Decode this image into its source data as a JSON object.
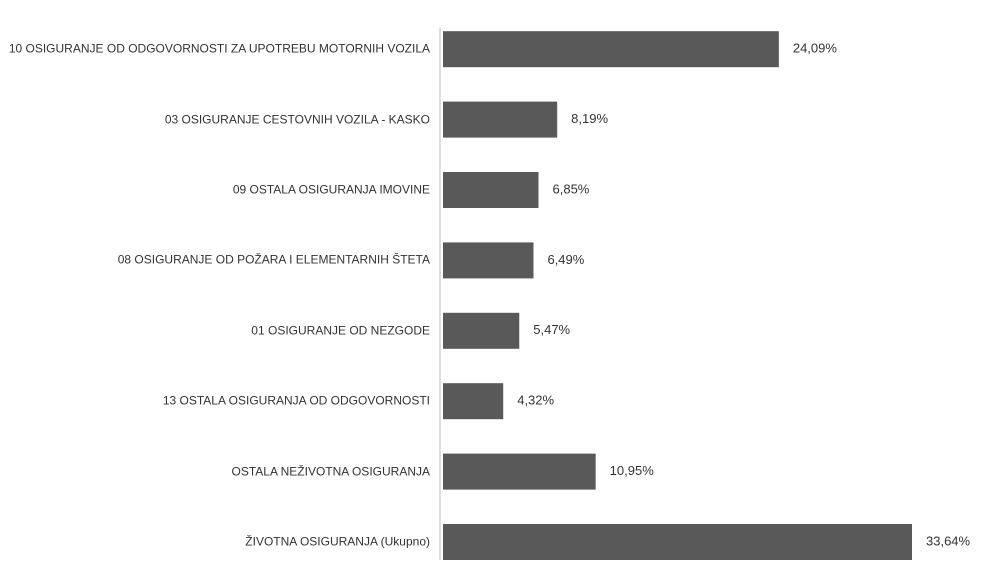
{
  "chart_data": {
    "type": "bar",
    "orientation": "horizontal",
    "categories": [
      "10 OSIGURANJE OD ODGOVORNOSTI ZA UPOTREBU MOTORNIH VOZILA",
      "03 OSIGURANJE CESTOVNIH VOZILA - KASKO",
      "09 OSTALA OSIGURANJA IMOVINE",
      "08 OSIGURANJE OD POŽARA I ELEMENTARNIH ŠTETA",
      "01 OSIGURANJE OD NEZGODE",
      "13 OSTALA OSIGURANJA OD ODGOVORNOSTI",
      "OSTALA NEŽIVOTNA OSIGURANJA",
      "ŽIVOTNA OSIGURANJA (Ukupno)"
    ],
    "values": [
      24.09,
      8.19,
      6.85,
      6.49,
      5.47,
      4.32,
      10.95,
      33.64
    ],
    "value_labels": [
      "24,09%",
      "8,19%",
      "6,85%",
      "6,49%",
      "5,47%",
      "4,32%",
      "10,95%",
      "33,64%"
    ],
    "color": "#595959"
  }
}
